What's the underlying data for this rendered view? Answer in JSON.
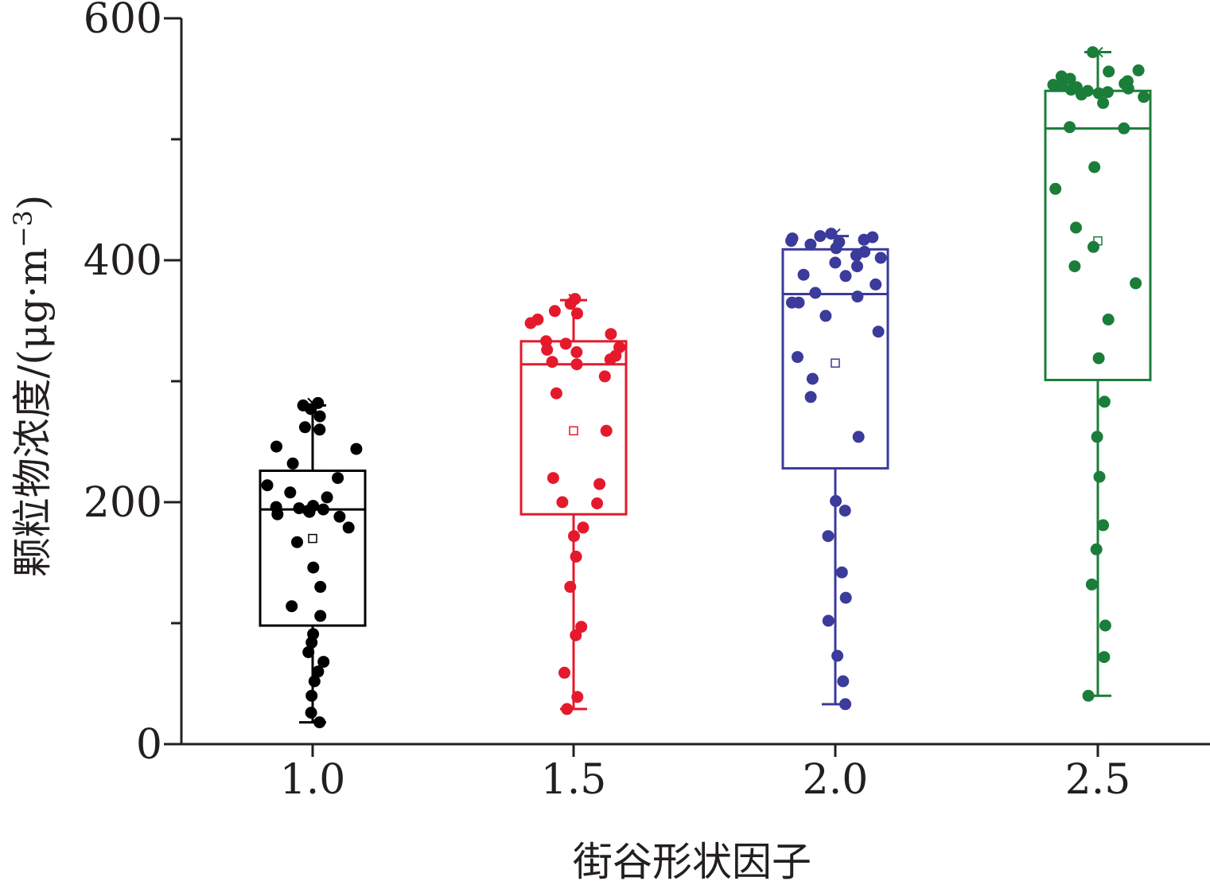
{
  "chart_data": {
    "type": "box",
    "xlabel": "街谷形状因子",
    "ylabel_main": "颗粒物浓度/(μg·m",
    "ylabel_sup": "−3",
    "ylabel_end": ")",
    "ylim": [
      0,
      600
    ],
    "yticks": [
      "0",
      "200",
      "400",
      "600"
    ],
    "categories": [
      "1.0",
      "1.5",
      "2.0",
      "2.5"
    ],
    "series": [
      {
        "color": "#000000",
        "box": {
          "q1": 98,
          "median": 194,
          "q3": 226,
          "mean": 170,
          "whisker_low": 18,
          "whisker_high": 280,
          "max_marker": 282
        },
        "points": [
          282,
          280,
          277,
          271,
          262,
          260,
          246,
          244,
          232,
          220,
          214,
          208,
          204,
          197,
          196,
          195,
          194,
          193,
          192,
          190,
          188,
          179,
          167,
          146,
          130,
          114,
          106,
          91,
          84,
          76,
          68,
          60,
          52,
          40,
          26,
          18
        ]
      },
      {
        "color": "#e41a2c",
        "box": {
          "q1": 190,
          "median": 314,
          "q3": 333,
          "mean": 259,
          "whisker_low": 29,
          "whisker_high": 367,
          "max_marker": 368
        },
        "points": [
          368,
          364,
          358,
          356,
          351,
          348,
          339,
          333,
          331,
          328,
          326,
          324,
          321,
          318,
          316,
          314,
          304,
          290,
          259,
          220,
          215,
          200,
          199,
          179,
          172,
          155,
          130,
          97,
          90,
          59,
          39,
          29
        ]
      },
      {
        "color": "#3b3b9b",
        "box": {
          "q1": 228,
          "median": 372,
          "q3": 409,
          "mean": 315,
          "whisker_low": 33,
          "whisker_high": 420,
          "max_marker": 422
        },
        "points": [
          422,
          420,
          419,
          418,
          417,
          416,
          415,
          413,
          410,
          407,
          404,
          402,
          398,
          395,
          388,
          387,
          380,
          373,
          370,
          365,
          365,
          354,
          341,
          320,
          302,
          287,
          254,
          201,
          193,
          172,
          142,
          121,
          102,
          73,
          52,
          33
        ]
      },
      {
        "color": "#1b7d3a",
        "box": {
          "q1": 301,
          "median": 509,
          "q3": 540,
          "mean": 416,
          "whisker_low": 40,
          "whisker_high": 572,
          "max_marker": 572
        },
        "points": [
          572,
          557,
          556,
          552,
          550,
          548,
          546,
          545,
          544,
          543,
          542,
          541,
          540,
          539,
          538,
          537,
          535,
          530,
          510,
          509,
          477,
          459,
          427,
          411,
          395,
          381,
          351,
          319,
          283,
          254,
          221,
          181,
          161,
          132,
          98,
          72,
          40
        ]
      }
    ]
  }
}
